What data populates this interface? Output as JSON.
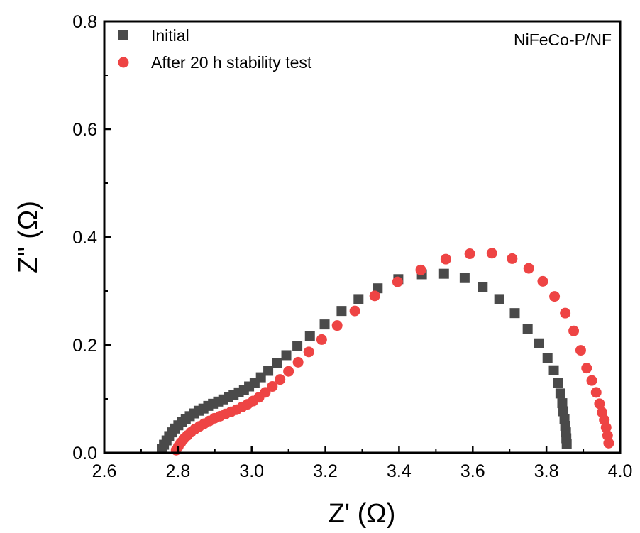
{
  "chart_data": {
    "type": "scatter",
    "xlabel": "Z' (Ω)",
    "ylabel": "Z'' (Ω)",
    "xlim": [
      2.6,
      4.0
    ],
    "ylim": [
      0.0,
      0.8
    ],
    "xticks": [
      "2.6",
      "2.8",
      "3.0",
      "3.2",
      "3.4",
      "3.6",
      "3.8",
      "4.0"
    ],
    "yticks": [
      "0.0",
      "0.2",
      "0.4",
      "0.6",
      "0.8"
    ],
    "grid": false,
    "legend_position": "top-left",
    "annotation": "NiFeCo-P/NF",
    "series": [
      {
        "name": "Initial",
        "marker": "square",
        "color": "#4a4a4a",
        "x": [
          2.756,
          2.762,
          2.769,
          2.776,
          2.784,
          2.792,
          2.801,
          2.811,
          2.821,
          2.832,
          2.844,
          2.856,
          2.869,
          2.882,
          2.895,
          2.909,
          2.923,
          2.937,
          2.951,
          2.965,
          2.979,
          2.993,
          3.008,
          3.025,
          3.045,
          3.068,
          3.094,
          3.124,
          3.158,
          3.198,
          3.244,
          3.29,
          3.342,
          3.398,
          3.462,
          3.522,
          3.578,
          3.627,
          3.672,
          3.714,
          3.749,
          3.779,
          3.803,
          3.82,
          3.831,
          3.838,
          3.843,
          3.846,
          3.849,
          3.851,
          3.853,
          3.854,
          3.855
        ],
        "y": [
          0.007,
          0.015,
          0.023,
          0.031,
          0.038,
          0.045,
          0.051,
          0.057,
          0.063,
          0.068,
          0.073,
          0.078,
          0.082,
          0.087,
          0.091,
          0.095,
          0.099,
          0.103,
          0.107,
          0.112,
          0.117,
          0.123,
          0.13,
          0.14,
          0.152,
          0.166,
          0.181,
          0.198,
          0.216,
          0.238,
          0.263,
          0.285,
          0.305,
          0.322,
          0.331,
          0.332,
          0.324,
          0.307,
          0.285,
          0.259,
          0.23,
          0.203,
          0.176,
          0.153,
          0.13,
          0.11,
          0.092,
          0.077,
          0.063,
          0.05,
          0.038,
          0.027,
          0.017
        ]
      },
      {
        "name": "After 20 h stability test",
        "marker": "circle",
        "color": "#ee4444",
        "x": [
          2.795,
          2.801,
          2.808,
          2.816,
          2.825,
          2.835,
          2.846,
          2.858,
          2.871,
          2.885,
          2.899,
          2.914,
          2.929,
          2.944,
          2.959,
          2.974,
          2.989,
          3.004,
          3.02,
          3.037,
          3.056,
          3.077,
          3.1,
          3.126,
          3.155,
          3.19,
          3.232,
          3.28,
          3.334,
          3.396,
          3.459,
          3.527,
          3.592,
          3.652,
          3.707,
          3.752,
          3.79,
          3.822,
          3.851,
          3.874,
          3.893,
          3.909,
          3.923,
          3.935,
          3.944,
          3.951,
          3.957,
          3.962,
          3.966,
          3.969
        ],
        "y": [
          0.005,
          0.012,
          0.019,
          0.026,
          0.032,
          0.038,
          0.044,
          0.049,
          0.054,
          0.059,
          0.064,
          0.068,
          0.072,
          0.076,
          0.08,
          0.085,
          0.09,
          0.096,
          0.103,
          0.112,
          0.123,
          0.136,
          0.151,
          0.168,
          0.187,
          0.21,
          0.236,
          0.263,
          0.291,
          0.317,
          0.339,
          0.359,
          0.369,
          0.37,
          0.36,
          0.342,
          0.318,
          0.29,
          0.259,
          0.226,
          0.19,
          0.157,
          0.134,
          0.112,
          0.091,
          0.075,
          0.061,
          0.047,
          0.032,
          0.018
        ]
      }
    ]
  }
}
